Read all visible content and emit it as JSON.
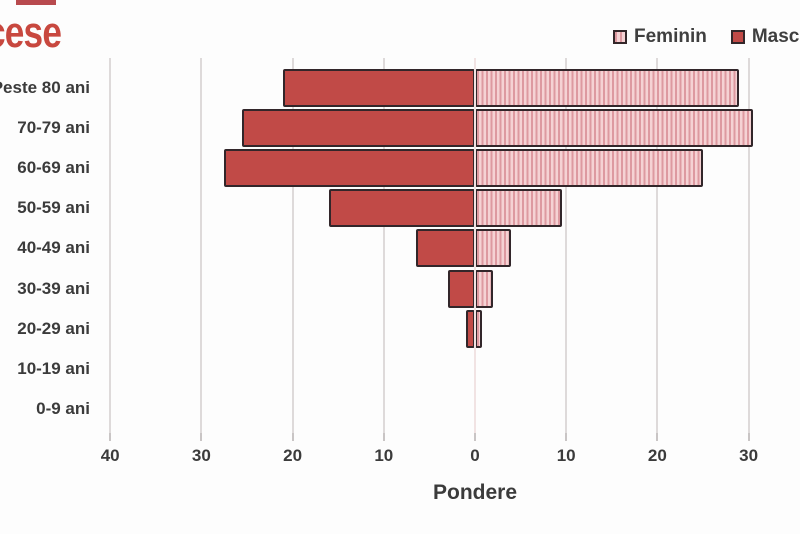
{
  "header": {
    "title_fragment": "cese"
  },
  "legend": {
    "items": [
      {
        "label": "Feminin",
        "swatch": "striped-pink"
      },
      {
        "label": "Masculin",
        "swatch": "solid-red"
      }
    ]
  },
  "chart_data": {
    "type": "bar",
    "subtype": "population_pyramid",
    "orientation": "horizontal",
    "title_fragment": "cese",
    "xlabel": "Pondere",
    "ylabel": "",
    "grid": true,
    "legend_position": "top-right",
    "categories": [
      "Peste 80 ani",
      "70-79 ani",
      "60-69 ani",
      "50-59 ani",
      "40-49 ani",
      "30-39 ani",
      "20-29 ani",
      "10-19 ani",
      "0-9 ani"
    ],
    "series": [
      {
        "name": "Masculin",
        "side": "left",
        "pattern": "solid",
        "values": [
          21,
          25.5,
          27.5,
          16,
          6.5,
          3,
          1,
          0,
          0
        ]
      },
      {
        "name": "Feminin",
        "side": "right",
        "pattern": "vertical-stripes",
        "values": [
          29,
          30.5,
          25,
          9.5,
          4,
          2,
          0.8,
          0,
          0
        ]
      }
    ],
    "x_axis": {
      "ticks": [
        {
          "label": "40",
          "value": -40
        },
        {
          "label": "30",
          "value": -30
        },
        {
          "label": "20",
          "value": -20
        },
        {
          "label": "10",
          "value": -10
        },
        {
          "label": "0",
          "value": 0
        },
        {
          "label": "10",
          "value": 10
        },
        {
          "label": "20",
          "value": 20
        },
        {
          "label": "30",
          "value": 30
        }
      ],
      "range": [
        -45,
        34.5
      ]
    }
  },
  "colors": {
    "male_fill": "#c14a47",
    "female_stripe_dark": "#dd99a0",
    "female_stripe_light": "#f5d2d4",
    "bar_border": "#32262a",
    "title": "#c8483f",
    "text": "#3b3b3b",
    "gridline": "#dedada",
    "zero_line": "#f1e3e3",
    "background": "#fdfdfd"
  }
}
